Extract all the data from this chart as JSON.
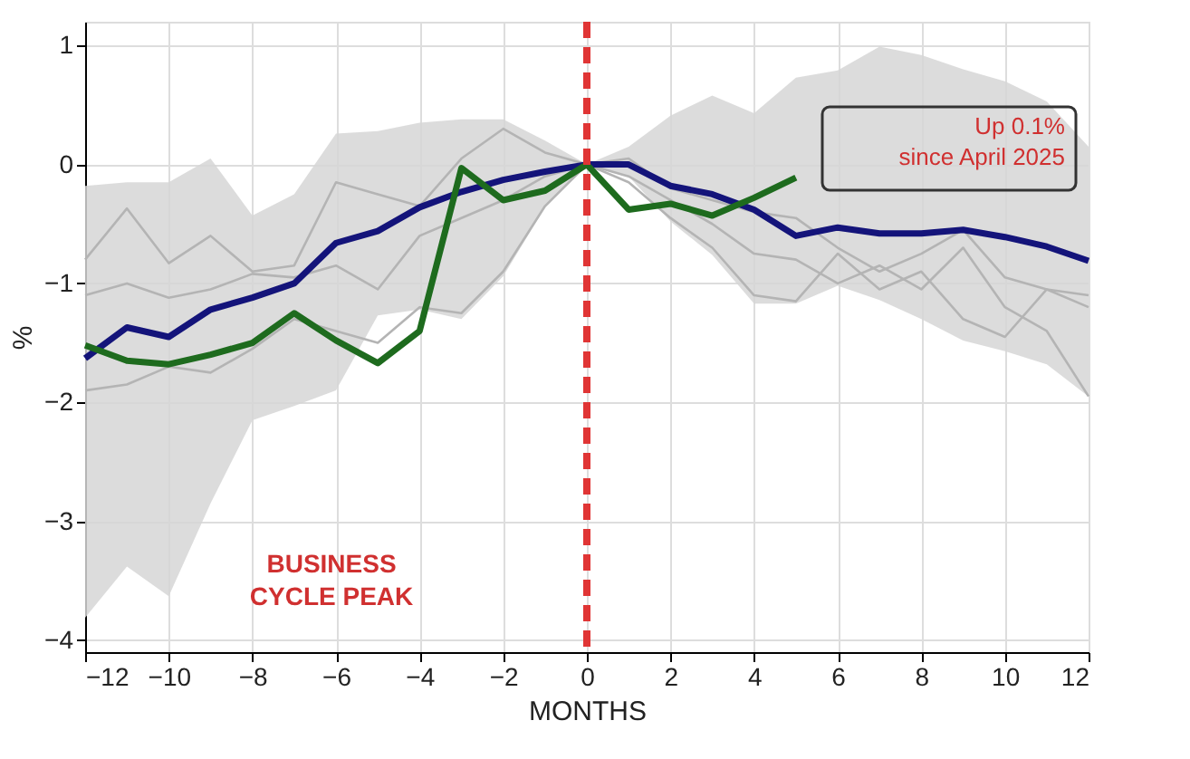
{
  "chart_data": {
    "type": "line",
    "xlabel": "MONTHS",
    "ylabel": "%",
    "x": [
      -12,
      -11,
      -10,
      -9,
      -8,
      -7,
      -6,
      -5,
      -4,
      -3,
      -2,
      -1,
      0,
      1,
      2,
      3,
      4,
      5,
      6,
      7,
      8,
      9,
      10,
      11,
      12
    ],
    "xlim": [
      -12,
      12
    ],
    "xticks": [
      -12,
      -10,
      -8,
      -6,
      -4,
      -2,
      0,
      2,
      4,
      6,
      8,
      10,
      12
    ],
    "ylim": [
      -4.1,
      1.2
    ],
    "yticks": [
      -4,
      -3,
      -2,
      -1,
      0,
      1
    ],
    "grid": true,
    "marker": "none",
    "line_style": "solid",
    "series": [
      {
        "color": "#b4b4b4",
        "values": [
          -0.8,
          -0.37,
          -0.83,
          -0.6,
          -0.9,
          -0.85,
          -0.15,
          -0.25,
          -0.35,
          0.05,
          0.3,
          0.1,
          0,
          0.05,
          -0.2,
          -0.3,
          -0.4,
          -0.45,
          -0.7,
          -0.9,
          -0.75,
          -0.55,
          -0.95,
          -1.05,
          -1.1
        ]
      },
      {
        "color": "#b4b4b4",
        "values": [
          -1.1,
          -1.0,
          -1.12,
          -1.05,
          -0.92,
          -0.95,
          -0.85,
          -1.05,
          -0.6,
          -0.45,
          -0.3,
          -0.1,
          0,
          -0.1,
          -0.3,
          -0.5,
          -0.75,
          -0.8,
          -1.0,
          -0.85,
          -1.05,
          -0.7,
          -1.2,
          -1.4,
          -1.95
        ]
      },
      {
        "color": "#b4b4b4",
        "values": [
          -1.9,
          -1.85,
          -1.7,
          -1.75,
          -1.55,
          -1.3,
          -1.4,
          -1.5,
          -1.2,
          -1.25,
          -0.9,
          -0.35,
          0,
          -0.15,
          -0.45,
          -0.7,
          -1.1,
          -1.15,
          -0.75,
          -1.05,
          -0.9,
          -1.3,
          -1.45,
          -1.05,
          -1.2
        ]
      },
      {
        "color": "#14147a",
        "values": [
          -1.63,
          -1.37,
          -1.45,
          -1.22,
          -1.12,
          -1.0,
          -0.66,
          -0.56,
          -0.36,
          -0.23,
          -0.13,
          -0.06,
          0,
          0.0,
          -0.18,
          -0.25,
          -0.38,
          -0.6,
          -0.53,
          -0.58,
          -0.58,
          -0.55,
          -0.61,
          -0.69,
          -0.81
        ],
        "lower": [
          -3.81,
          -3.38,
          -3.63,
          -2.85,
          -2.15,
          -2.03,
          -1.9,
          -1.27,
          -1.22,
          -1.3,
          -0.94,
          -0.36,
          0,
          -0.1,
          -0.48,
          -0.76,
          -1.17,
          -1.17,
          -1.02,
          -1.14,
          -1.3,
          -1.48,
          -1.57,
          -1.68,
          -1.95
        ],
        "upper": [
          -0.18,
          -0.15,
          -0.15,
          0.05,
          -0.43,
          -0.25,
          0.26,
          0.28,
          0.35,
          0.38,
          0.38,
          0.2,
          0,
          0.15,
          0.41,
          0.58,
          0.43,
          0.73,
          0.79,
          0.99,
          0.92,
          0.8,
          0.7,
          0.53,
          0.15
        ]
      },
      {
        "color": "#1e6b1e",
        "x": [
          -12,
          -11,
          -10,
          -9,
          -8,
          -7,
          -6,
          -5,
          -4,
          -3,
          -2,
          -1,
          0,
          1,
          2,
          3,
          4,
          5
        ],
        "values": [
          -1.52,
          -1.65,
          -1.68,
          -1.6,
          -1.5,
          -1.25,
          -1.48,
          -1.67,
          -1.4,
          -0.03,
          -0.3,
          -0.22,
          0,
          -0.38,
          -0.33,
          -0.43,
          -0.28,
          -0.11
        ]
      }
    ],
    "ref_lines": [
      {
        "axis": "x",
        "value": 0,
        "color": "#e03535",
        "line_style": "dashed"
      }
    ],
    "annotations": [
      "BUSINESS\nCYCLE PEAK",
      "Up 0.1%\nsince April 2025"
    ]
  }
}
